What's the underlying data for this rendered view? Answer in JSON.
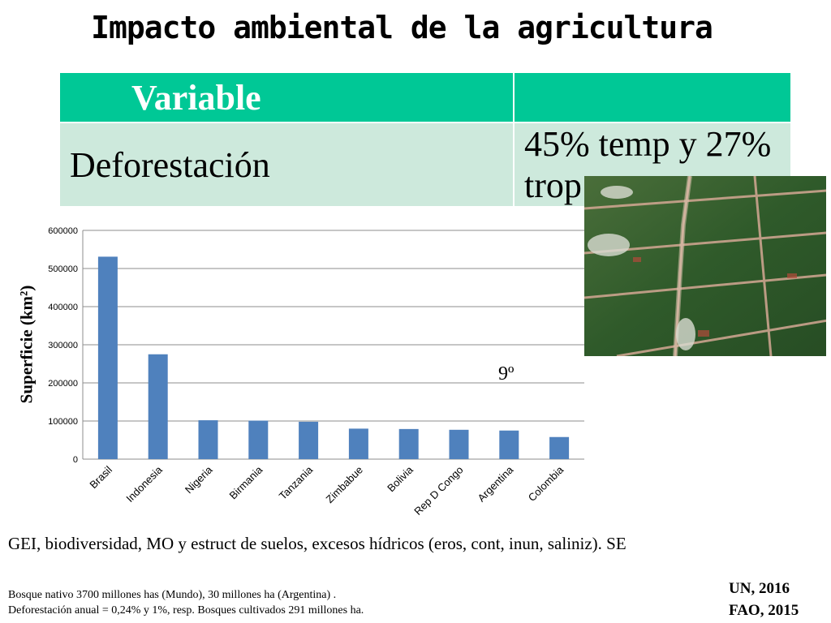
{
  "title": "Impacto ambiental de la agricultura",
  "table": {
    "header": [
      "Variable",
      ""
    ],
    "rows": [
      [
        "Deforestación",
        "45% temp y 27% trop"
      ]
    ]
  },
  "chart_data": {
    "type": "bar",
    "categories": [
      "Brasil",
      "Indonesia",
      "Nigeria",
      "Birmania",
      "Tanzania",
      "Zimbabue",
      "Bolivia",
      "Rep D Congo",
      "Argentina",
      "Colombia"
    ],
    "values": [
      531000,
      275000,
      102000,
      101000,
      98000,
      80000,
      79000,
      77000,
      75000,
      58000
    ],
    "title": "",
    "xlabel": "",
    "ylabel": "Superficie (km²)",
    "ylim": [
      0,
      600000
    ],
    "yticks": [
      "0",
      "100000",
      "200000",
      "300000",
      "400000",
      "500000",
      "600000"
    ],
    "grid": true,
    "bar_color": "#4f81bd",
    "annotation": "9º"
  },
  "image": {
    "icon": "satellite-deforestation-photo"
  },
  "gei_text": "GEI, biodiversidad, MO y estruct de suelos, excesos hídricos (eros, cont, inun, saliniz). SE",
  "notes": [
    "Bosque nativo 3700 millones has  (Mundo), 30 millones ha (Argentina) .",
    "Deforestación anual = 0,24% y 1%, resp. Bosques cultivados 291 millones ha."
  ],
  "sources": [
    "UN, 2016",
    "FAO, 2015"
  ],
  "colors": {
    "header": "#00c896",
    "row": "#cde9dc",
    "bars": "#4f81bd"
  }
}
